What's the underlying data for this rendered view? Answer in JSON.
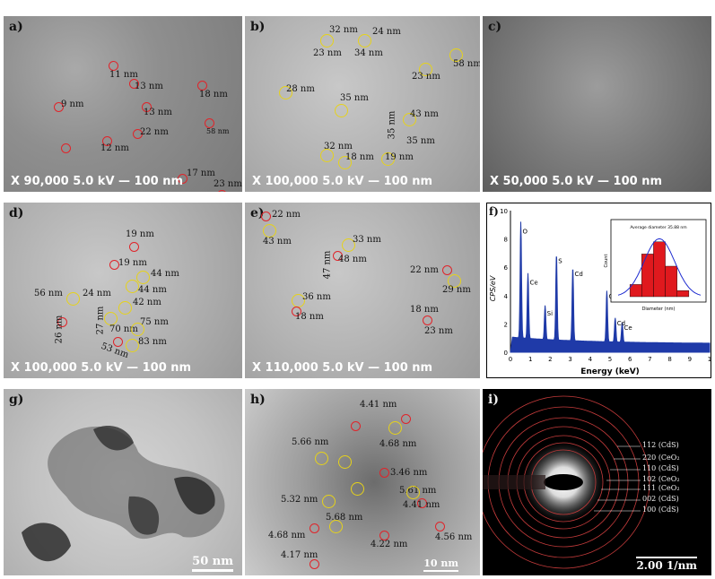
{
  "panels": {
    "a": {
      "label": "a)",
      "scale": "X 90,000  5.0 kV  — 100 nm",
      "annotations": [
        "11 nm",
        "13 nm",
        "18 nm",
        "9 nm",
        "13 nm",
        "22 nm",
        "12 nm",
        "58 nm",
        "17 nm",
        "23 nm"
      ]
    },
    "b": {
      "label": "b)",
      "scale": "X 100,000  5.0 kV  —  100 nm",
      "annotations": [
        "32 nm",
        "24 nm",
        "23 nm",
        "34 nm",
        "58 nm",
        "28 nm",
        "23 nm",
        "35 nm",
        "43 nm",
        "35 nm",
        "32 nm",
        "35 nm",
        "18 nm",
        "19 nm"
      ]
    },
    "c": {
      "label": "c)",
      "scale": "X 50,000  5.0 kV  — 100 nm"
    },
    "d": {
      "label": "d)",
      "scale": "X 100,000  5.0 kV  — 100 nm",
      "annotations": [
        "19 nm",
        "19 nm",
        "44 nm",
        "24 nm",
        "44 nm",
        "56 nm",
        "42 nm",
        "27 nm",
        "70 nm",
        "75 nm",
        "26 nm",
        "53 nm",
        "83 nm"
      ]
    },
    "e": {
      "label": "e)",
      "scale": "X 110,000  5.0 kV  — 100 nm",
      "annotations": [
        "22 nm",
        "43 nm",
        "33 nm",
        "47 nm",
        "48 nm",
        "22 nm",
        "29 nm",
        "36 nm",
        "18 nm",
        "18 nm",
        "23 nm"
      ]
    },
    "f": {
      "label": "f)",
      "ylabel": "CPS/eV",
      "xlabel": "Energy (keV)",
      "yticks": [
        "0",
        "2",
        "4",
        "6",
        "8",
        "10"
      ],
      "xticks": [
        "0",
        "1",
        "2",
        "3",
        "4",
        "5",
        "6",
        "7",
        "8",
        "9",
        "1"
      ],
      "peaks": [
        "O",
        "Ce",
        "Si",
        "S",
        "Cd",
        "Ce",
        "Cd",
        "Ce"
      ],
      "inset": {
        "title": "Average diameter 35.88 nm",
        "xlabel": "Diameter (nm)",
        "ylabel": "Count"
      }
    },
    "g": {
      "label": "g)",
      "scale": "50 nm"
    },
    "h": {
      "label": "h)",
      "scale": "10 nm",
      "annotations": [
        "4.41 nm",
        "5.66 nm",
        "4.68 nm",
        "3.46 nm",
        "5.61 nm",
        "5.32 nm",
        "4.41 nm",
        "5.68 nm",
        "4.68 nm",
        "4.56 nm",
        "4.22 nm",
        "4.17 nm"
      ]
    },
    "i": {
      "label": "i)",
      "scale": "2.00 1/nm",
      "rings": [
        "112 (CdS)",
        "220 (CeO₂",
        "110 (CdS)",
        "102 (CeO₂",
        "111 (CeO₂",
        "002 (CdS)",
        "100 (CdS)"
      ]
    }
  },
  "chart_data": {
    "type": "line",
    "title": "",
    "xlabel": "Energy (keV)",
    "ylabel": "CPS/eV",
    "xlim": [
      0,
      10
    ],
    "ylim": [
      0,
      10
    ],
    "peaks": [
      {
        "label": "O",
        "x": 0.52,
        "y": 8.2
      },
      {
        "label": "Ce",
        "x": 0.88,
        "y": 4.6
      },
      {
        "label": "Si",
        "x": 1.74,
        "y": 2.4
      },
      {
        "label": "S",
        "x": 2.31,
        "y": 6.1
      },
      {
        "label": "Cd",
        "x": 3.13,
        "y": 5.2
      },
      {
        "label": "Ce",
        "x": 4.84,
        "y": 3.6
      },
      {
        "label": "Cd",
        "x": 5.26,
        "y": 1.7
      },
      {
        "label": "Ce",
        "x": 5.61,
        "y": 1.4
      }
    ],
    "inset": {
      "type": "bar",
      "title": "Average diameter 35.88 nm",
      "xlabel": "Diameter (nm)",
      "ylabel": "Count",
      "bins": [
        15,
        25,
        35,
        45,
        55
      ],
      "values": [
        2,
        7,
        9,
        5,
        1
      ]
    }
  }
}
